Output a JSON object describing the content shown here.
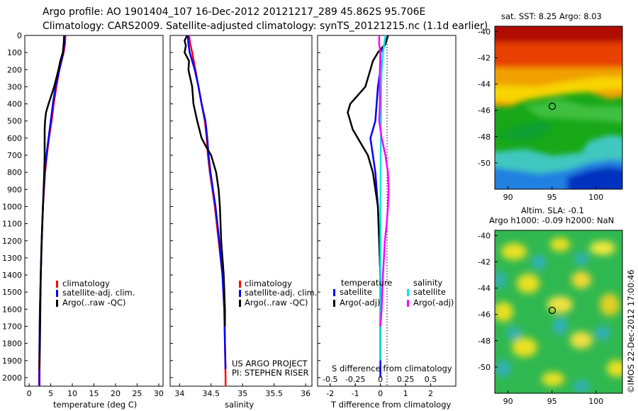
{
  "header": {
    "line1": "Argo profile: AO 1901404_107 16-Dec-2012 20121217_289 45.862S 95.706E",
    "line2": "Climatology: CARS2009. Satellite-adjusted climatology: synTS_20121215.nc (1.1d earlier)"
  },
  "panels": {
    "temperature": {
      "xlabel": "temperature (deg C)",
      "legend": [
        "climatology",
        "satellite-adj. clim.",
        "Argo(..raw -QC)"
      ]
    },
    "salinity": {
      "xlabel": "salinity",
      "legend": [
        "climatology",
        "satellite-adj. clim.",
        "Argo(..raw -QC)"
      ],
      "project_line1": "US ARGO PROJECT",
      "project_line2": "PI: STEPHEN RISER"
    },
    "difference": {
      "xlabel": "T difference from climatology",
      "top_axis_label": "S difference from climatology",
      "legend_temperature_title": "temperature",
      "legend_salinity_title": "salinity",
      "legend_satellite": "satellite",
      "legend_argo": "Argo(-adj)"
    },
    "sst_map": {
      "title": "sat. SST: 8.25 Argo: 8.03"
    },
    "sla_map": {
      "title1": "Altim. SLA: -0.1",
      "title2": "Argo h1000: -0.09 h2000: NaN"
    }
  },
  "watermark": "©IMOS 22-Dec-2012 17:00:46",
  "colors": {
    "climatology": "#ff0000",
    "satellite": "#0000ff",
    "argo": "#000000",
    "sal_satellite": "#00e5e5",
    "sal_argo": "#ff00ff"
  },
  "chart_data": [
    {
      "type": "line",
      "title": "",
      "xlabel": "temperature (deg C)",
      "ylabel": "",
      "xlim": [
        -1,
        31
      ],
      "ylim": [
        2050,
        0
      ],
      "xticks": [
        "0",
        "5",
        "10",
        "15",
        "20",
        "25",
        "30"
      ],
      "yticks": [
        "0",
        "100",
        "200",
        "300",
        "400",
        "500",
        "600",
        "700",
        "800",
        "900",
        "1000",
        "1100",
        "1200",
        "1300",
        "1400",
        "1500",
        "1600",
        "1700",
        "1800",
        "1900",
        "2000"
      ],
      "series": [
        {
          "name": "climatology",
          "color": "#ff0000",
          "depth": [
            0,
            50,
            100,
            200,
            300,
            400,
            500,
            600,
            700,
            800,
            1000,
            1200,
            1400,
            1600,
            1800,
            2000,
            2050
          ],
          "values": [
            8.4,
            8.3,
            8.0,
            7.0,
            6.3,
            5.7,
            5.2,
            4.6,
            4.1,
            3.7,
            3.2,
            2.9,
            2.7,
            2.5,
            2.4,
            2.3,
            2.3
          ]
        },
        {
          "name": "satellite-adj. clim.",
          "color": "#0000ff",
          "depth": [
            0,
            50,
            100,
            200,
            300,
            400,
            500,
            600,
            700,
            800,
            1000,
            1200,
            1400,
            1600,
            1800,
            2000,
            2050
          ],
          "values": [
            8.2,
            8.1,
            7.9,
            7.0,
            6.1,
            5.5,
            5.0,
            4.5,
            4.0,
            3.6,
            3.2,
            2.9,
            2.7,
            2.5,
            2.4,
            2.4,
            2.4
          ]
        },
        {
          "name": "Argo(..raw -QC)",
          "color": "#000000",
          "depth": [
            0,
            50,
            100,
            150,
            200,
            300,
            400,
            450,
            500,
            550,
            600,
            700,
            800,
            1000,
            1200,
            1400,
            1600,
            1800,
            1950
          ],
          "values": [
            8.1,
            8.0,
            7.8,
            7.2,
            6.8,
            5.8,
            4.5,
            3.9,
            3.7,
            3.6,
            3.6,
            3.6,
            3.5,
            3.2,
            2.9,
            2.7,
            2.6,
            2.5,
            2.4
          ]
        }
      ]
    },
    {
      "type": "line",
      "title": "",
      "xlabel": "salinity",
      "ylabel": "",
      "xlim": [
        33.85,
        36.1
      ],
      "ylim": [
        2050,
        0
      ],
      "xticks": [
        "34",
        "34.5",
        "35",
        "35.5",
        "36"
      ],
      "series": [
        {
          "name": "climatology",
          "color": "#ff0000",
          "depth": [
            0,
            50,
            100,
            200,
            300,
            400,
            500,
            600,
            700,
            800,
            900,
            1000,
            1200,
            1400,
            1600,
            1800,
            2000,
            2050
          ],
          "values": [
            34.15,
            34.17,
            34.2,
            34.25,
            34.3,
            34.35,
            34.4,
            34.43,
            34.45,
            34.48,
            34.52,
            34.56,
            34.62,
            34.68,
            34.71,
            34.72,
            34.73,
            34.73
          ]
        },
        {
          "name": "satellite-adj. clim.",
          "color": "#0000ff",
          "depth": [
            0,
            50,
            100,
            200,
            300,
            400,
            500,
            600,
            700,
            800,
            900,
            1000,
            1200,
            1400,
            1600,
            1800,
            1950
          ],
          "values": [
            34.13,
            34.14,
            34.16,
            34.24,
            34.3,
            34.35,
            34.41,
            34.44,
            34.46,
            34.49,
            34.53,
            34.57,
            34.63,
            34.68,
            34.71,
            34.72,
            34.73
          ]
        },
        {
          "name": "Argo(..raw -QC)",
          "color": "#000000",
          "depth": [
            0,
            30,
            60,
            100,
            150,
            200,
            300,
            400,
            500,
            600,
            650,
            700,
            800,
            900,
            1000,
            1200,
            1400,
            1600,
            1700
          ],
          "values": [
            34.12,
            34.08,
            34.1,
            34.08,
            34.15,
            34.14,
            34.2,
            34.22,
            34.28,
            34.35,
            34.42,
            34.5,
            34.58,
            34.62,
            34.64,
            34.66,
            34.7,
            34.72,
            34.72
          ]
        }
      ]
    },
    {
      "type": "line",
      "title": "",
      "xlabel": "T difference from climatology",
      "ylabel": "",
      "xlim": [
        -2.5,
        3.0
      ],
      "ylim": [
        2050,
        0
      ],
      "xticks": [
        "-2",
        "-1",
        "0",
        "1",
        "2"
      ],
      "top_xlabel": "S difference from climatology",
      "top_xticks": [
        "-0.5",
        "-0.25",
        "0",
        "0.25",
        "0.5"
      ],
      "series": [
        {
          "name": "temperature satellite",
          "color": "#0000ff",
          "depth": [
            0,
            50,
            100,
            200,
            300,
            400,
            500,
            600,
            700,
            800,
            1000,
            1200,
            1400,
            1700,
            2000
          ],
          "values": [
            0.3,
            0.2,
            0.0,
            0.0,
            -0.1,
            -0.15,
            -0.2,
            -0.4,
            -0.3,
            -0.2,
            -0.1,
            -0.05,
            0.0,
            0.0,
            0.0
          ]
        },
        {
          "name": "temperature Argo(-adj)",
          "color": "#000000",
          "depth": [
            0,
            50,
            100,
            150,
            200,
            300,
            400,
            450,
            500,
            550,
            600,
            700,
            800,
            1000,
            1200,
            1400,
            1600,
            1800,
            1900
          ],
          "values": [
            0.3,
            0.2,
            -0.1,
            -0.3,
            -0.4,
            -0.6,
            -1.2,
            -1.3,
            -1.2,
            -1.1,
            -0.9,
            -0.5,
            -0.3,
            -0.1,
            -0.05,
            0.0,
            0.0,
            0.0,
            0.0
          ]
        },
        {
          "name": "salinity satellite",
          "color": "#00e5e5",
          "depth": [
            0,
            50,
            100,
            200,
            300,
            400,
            500,
            600,
            700,
            800,
            1000,
            1200,
            1400,
            1600,
            1900
          ],
          "values": [
            0.2,
            0.15,
            0.1,
            0.05,
            0.03,
            0.03,
            0.02,
            0.02,
            0.01,
            0.01,
            0.0,
            0.0,
            0.0,
            0.0,
            0.0
          ]
        },
        {
          "name": "salinity Argo(-adj)",
          "color": "#ff00ff",
          "depth": [
            0,
            50,
            100,
            200,
            300,
            400,
            500,
            600,
            700,
            800,
            900,
            1000,
            1100,
            1200,
            1400,
            1600,
            1700
          ],
          "values": [
            -0.05,
            -0.05,
            0.0,
            -0.02,
            -0.03,
            -0.02,
            -0.05,
            0.05,
            0.2,
            0.3,
            0.33,
            0.3,
            0.25,
            0.18,
            0.1,
            0.05,
            0.0
          ]
        }
      ]
    },
    {
      "type": "heatmap",
      "title": "sat. SST: 8.25 Argo: 8.03",
      "xlim": [
        88.5,
        103
      ],
      "ylim": [
        -52,
        -39.6
      ],
      "xticks": [
        "90",
        "95",
        "100"
      ],
      "yticks": [
        "-40",
        "-42",
        "-44",
        "-46",
        "-48",
        "-50"
      ],
      "marker": {
        "lon": 95.7,
        "lat": -45.86
      }
    },
    {
      "type": "heatmap",
      "title": "Altim. SLA: -0.1",
      "xlim": [
        88.5,
        103
      ],
      "ylim": [
        -52,
        -39.6
      ],
      "xticks": [
        "90",
        "95",
        "100"
      ],
      "yticks": [
        "-40",
        "-42",
        "-44",
        "-46",
        "-48",
        "-50"
      ],
      "marker": {
        "lon": 95.7,
        "lat": -45.86
      }
    }
  ]
}
